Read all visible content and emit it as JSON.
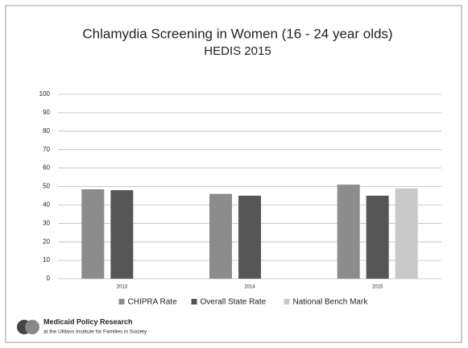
{
  "chart_data": {
    "type": "bar",
    "title": "Chlamydia Screening in Women (16 - 24 year olds)",
    "subtitle": "HEDIS 2015",
    "categories": [
      "2013",
      "2014",
      "2015"
    ],
    "series": [
      {
        "name": "CHIPRA Rate",
        "color": "#8c8c8c",
        "values": [
          48.5,
          46,
          51
        ]
      },
      {
        "name": "Overall State Rate",
        "color": "#565656",
        "values": [
          48,
          45,
          45
        ]
      },
      {
        "name": "National Bench Mark",
        "color": "#c9c9c9",
        "values": [
          null,
          null,
          49
        ]
      }
    ],
    "ylim": [
      0,
      100
    ],
    "yticks": [
      0,
      10,
      20,
      30,
      40,
      50,
      60,
      70,
      80,
      90,
      100
    ],
    "grid": true,
    "legend": "bottom"
  },
  "footer": {
    "org": "Medicaid Policy Research",
    "affiliation": "at the UMass Institute for Families in Society"
  }
}
